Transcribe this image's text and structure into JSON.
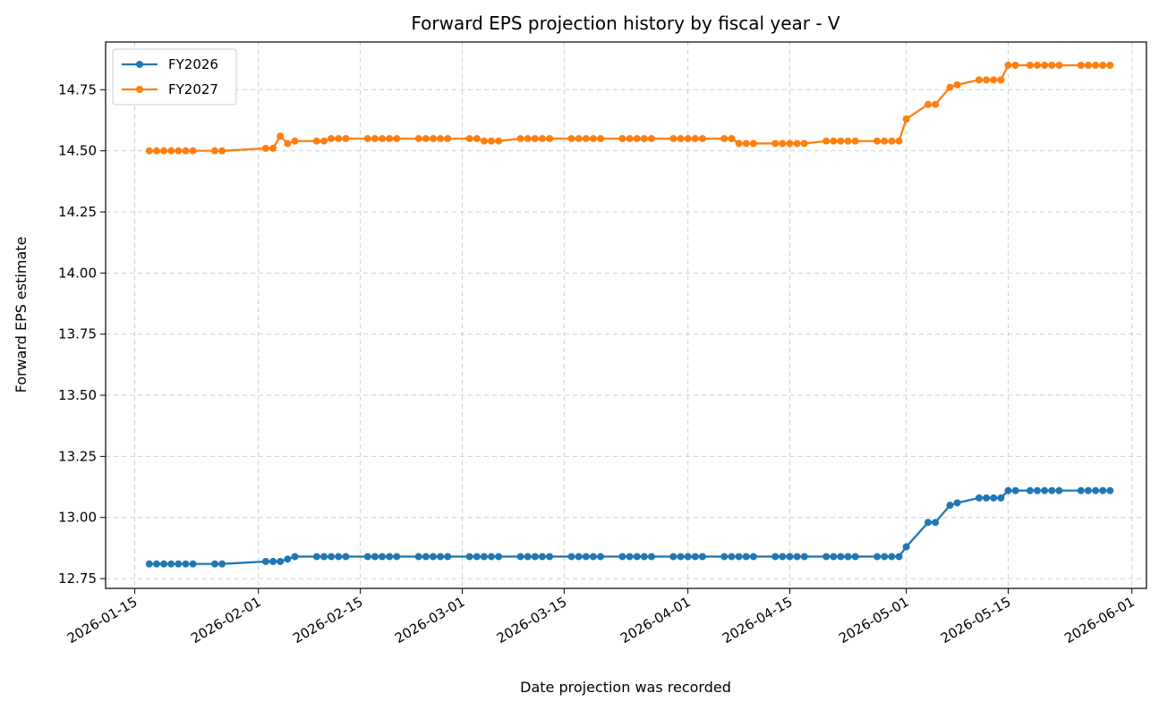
{
  "chart_data": {
    "type": "line",
    "title": "Forward EPS projection history by fiscal year - V",
    "xlabel": "Date projection was recorded",
    "ylabel": "Forward EPS estimate",
    "xlim": [
      "2026-01-11",
      "2026-06-03"
    ],
    "ylim": [
      12.71,
      14.945
    ],
    "grid": true,
    "legend_position": "top-left",
    "x_ticks": [
      "2026-01-15",
      "2026-02-01",
      "2026-02-15",
      "2026-03-01",
      "2026-03-15",
      "2026-04-01",
      "2026-04-15",
      "2026-05-01",
      "2026-05-15",
      "2026-06-01"
    ],
    "y_ticks": [
      "12.75",
      "13.00",
      "13.25",
      "13.50",
      "13.75",
      "14.00",
      "14.25",
      "14.50",
      "14.75"
    ],
    "series": [
      {
        "name": "FY2026",
        "color": "#1f77b4",
        "points": [
          [
            "2026-01-17",
            12.81
          ],
          [
            "2026-01-18",
            12.81
          ],
          [
            "2026-01-19",
            12.81
          ],
          [
            "2026-01-20",
            12.81
          ],
          [
            "2026-01-21",
            12.81
          ],
          [
            "2026-01-22",
            12.81
          ],
          [
            "2026-01-23",
            12.81
          ],
          [
            "2026-01-26",
            12.81
          ],
          [
            "2026-01-27",
            12.81
          ],
          [
            "2026-02-02",
            12.82
          ],
          [
            "2026-02-03",
            12.82
          ],
          [
            "2026-02-04",
            12.82
          ],
          [
            "2026-02-05",
            12.83
          ],
          [
            "2026-02-06",
            12.84
          ],
          [
            "2026-02-09",
            12.84
          ],
          [
            "2026-02-10",
            12.84
          ],
          [
            "2026-02-11",
            12.84
          ],
          [
            "2026-02-12",
            12.84
          ],
          [
            "2026-02-13",
            12.84
          ],
          [
            "2026-02-16",
            12.84
          ],
          [
            "2026-02-17",
            12.84
          ],
          [
            "2026-02-18",
            12.84
          ],
          [
            "2026-02-19",
            12.84
          ],
          [
            "2026-02-20",
            12.84
          ],
          [
            "2026-02-23",
            12.84
          ],
          [
            "2026-02-24",
            12.84
          ],
          [
            "2026-02-25",
            12.84
          ],
          [
            "2026-02-26",
            12.84
          ],
          [
            "2026-02-27",
            12.84
          ],
          [
            "2026-03-02",
            12.84
          ],
          [
            "2026-03-03",
            12.84
          ],
          [
            "2026-03-04",
            12.84
          ],
          [
            "2026-03-05",
            12.84
          ],
          [
            "2026-03-06",
            12.84
          ],
          [
            "2026-03-09",
            12.84
          ],
          [
            "2026-03-10",
            12.84
          ],
          [
            "2026-03-11",
            12.84
          ],
          [
            "2026-03-12",
            12.84
          ],
          [
            "2026-03-13",
            12.84
          ],
          [
            "2026-03-16",
            12.84
          ],
          [
            "2026-03-17",
            12.84
          ],
          [
            "2026-03-18",
            12.84
          ],
          [
            "2026-03-19",
            12.84
          ],
          [
            "2026-03-20",
            12.84
          ],
          [
            "2026-03-23",
            12.84
          ],
          [
            "2026-03-24",
            12.84
          ],
          [
            "2026-03-25",
            12.84
          ],
          [
            "2026-03-26",
            12.84
          ],
          [
            "2026-03-27",
            12.84
          ],
          [
            "2026-03-30",
            12.84
          ],
          [
            "2026-03-31",
            12.84
          ],
          [
            "2026-04-01",
            12.84
          ],
          [
            "2026-04-02",
            12.84
          ],
          [
            "2026-04-03",
            12.84
          ],
          [
            "2026-04-06",
            12.84
          ],
          [
            "2026-04-07",
            12.84
          ],
          [
            "2026-04-08",
            12.84
          ],
          [
            "2026-04-09",
            12.84
          ],
          [
            "2026-04-10",
            12.84
          ],
          [
            "2026-04-13",
            12.84
          ],
          [
            "2026-04-14",
            12.84
          ],
          [
            "2026-04-15",
            12.84
          ],
          [
            "2026-04-16",
            12.84
          ],
          [
            "2026-04-17",
            12.84
          ],
          [
            "2026-04-20",
            12.84
          ],
          [
            "2026-04-21",
            12.84
          ],
          [
            "2026-04-22",
            12.84
          ],
          [
            "2026-04-23",
            12.84
          ],
          [
            "2026-04-24",
            12.84
          ],
          [
            "2026-04-27",
            12.84
          ],
          [
            "2026-04-28",
            12.84
          ],
          [
            "2026-04-29",
            12.84
          ],
          [
            "2026-04-30",
            12.84
          ],
          [
            "2026-05-01",
            12.88
          ],
          [
            "2026-05-04",
            12.98
          ],
          [
            "2026-05-05",
            12.98
          ],
          [
            "2026-05-07",
            13.05
          ],
          [
            "2026-05-08",
            13.06
          ],
          [
            "2026-05-11",
            13.08
          ],
          [
            "2026-05-12",
            13.08
          ],
          [
            "2026-05-13",
            13.08
          ],
          [
            "2026-05-14",
            13.08
          ],
          [
            "2026-05-15",
            13.11
          ],
          [
            "2026-05-16",
            13.11
          ],
          [
            "2026-05-18",
            13.11
          ],
          [
            "2026-05-19",
            13.11
          ],
          [
            "2026-05-20",
            13.11
          ],
          [
            "2026-05-21",
            13.11
          ],
          [
            "2026-05-22",
            13.11
          ],
          [
            "2026-05-25",
            13.11
          ],
          [
            "2026-05-26",
            13.11
          ],
          [
            "2026-05-27",
            13.11
          ],
          [
            "2026-05-28",
            13.11
          ],
          [
            "2026-05-29",
            13.11
          ]
        ]
      },
      {
        "name": "FY2027",
        "color": "#ff7f0e",
        "points": [
          [
            "2026-01-17",
            14.5
          ],
          [
            "2026-01-18",
            14.5
          ],
          [
            "2026-01-19",
            14.5
          ],
          [
            "2026-01-20",
            14.5
          ],
          [
            "2026-01-21",
            14.5
          ],
          [
            "2026-01-22",
            14.5
          ],
          [
            "2026-01-23",
            14.5
          ],
          [
            "2026-01-26",
            14.5
          ],
          [
            "2026-01-27",
            14.5
          ],
          [
            "2026-02-02",
            14.51
          ],
          [
            "2026-02-03",
            14.51
          ],
          [
            "2026-02-04",
            14.56
          ],
          [
            "2026-02-05",
            14.53
          ],
          [
            "2026-02-06",
            14.54
          ],
          [
            "2026-02-09",
            14.54
          ],
          [
            "2026-02-10",
            14.54
          ],
          [
            "2026-02-11",
            14.55
          ],
          [
            "2026-02-12",
            14.55
          ],
          [
            "2026-02-13",
            14.55
          ],
          [
            "2026-02-16",
            14.55
          ],
          [
            "2026-02-17",
            14.55
          ],
          [
            "2026-02-18",
            14.55
          ],
          [
            "2026-02-19",
            14.55
          ],
          [
            "2026-02-20",
            14.55
          ],
          [
            "2026-02-23",
            14.55
          ],
          [
            "2026-02-24",
            14.55
          ],
          [
            "2026-02-25",
            14.55
          ],
          [
            "2026-02-26",
            14.55
          ],
          [
            "2026-02-27",
            14.55
          ],
          [
            "2026-03-02",
            14.55
          ],
          [
            "2026-03-03",
            14.55
          ],
          [
            "2026-03-04",
            14.54
          ],
          [
            "2026-03-05",
            14.54
          ],
          [
            "2026-03-06",
            14.54
          ],
          [
            "2026-03-09",
            14.55
          ],
          [
            "2026-03-10",
            14.55
          ],
          [
            "2026-03-11",
            14.55
          ],
          [
            "2026-03-12",
            14.55
          ],
          [
            "2026-03-13",
            14.55
          ],
          [
            "2026-03-16",
            14.55
          ],
          [
            "2026-03-17",
            14.55
          ],
          [
            "2026-03-18",
            14.55
          ],
          [
            "2026-03-19",
            14.55
          ],
          [
            "2026-03-20",
            14.55
          ],
          [
            "2026-03-23",
            14.55
          ],
          [
            "2026-03-24",
            14.55
          ],
          [
            "2026-03-25",
            14.55
          ],
          [
            "2026-03-26",
            14.55
          ],
          [
            "2026-03-27",
            14.55
          ],
          [
            "2026-03-30",
            14.55
          ],
          [
            "2026-03-31",
            14.55
          ],
          [
            "2026-04-01",
            14.55
          ],
          [
            "2026-04-02",
            14.55
          ],
          [
            "2026-04-03",
            14.55
          ],
          [
            "2026-04-06",
            14.55
          ],
          [
            "2026-04-07",
            14.55
          ],
          [
            "2026-04-08",
            14.53
          ],
          [
            "2026-04-09",
            14.53
          ],
          [
            "2026-04-10",
            14.53
          ],
          [
            "2026-04-13",
            14.53
          ],
          [
            "2026-04-14",
            14.53
          ],
          [
            "2026-04-15",
            14.53
          ],
          [
            "2026-04-16",
            14.53
          ],
          [
            "2026-04-17",
            14.53
          ],
          [
            "2026-04-20",
            14.54
          ],
          [
            "2026-04-21",
            14.54
          ],
          [
            "2026-04-22",
            14.54
          ],
          [
            "2026-04-23",
            14.54
          ],
          [
            "2026-04-24",
            14.54
          ],
          [
            "2026-04-27",
            14.54
          ],
          [
            "2026-04-28",
            14.54
          ],
          [
            "2026-04-29",
            14.54
          ],
          [
            "2026-04-30",
            14.54
          ],
          [
            "2026-05-01",
            14.63
          ],
          [
            "2026-05-04",
            14.69
          ],
          [
            "2026-05-05",
            14.69
          ],
          [
            "2026-05-07",
            14.76
          ],
          [
            "2026-05-08",
            14.77
          ],
          [
            "2026-05-11",
            14.79
          ],
          [
            "2026-05-12",
            14.79
          ],
          [
            "2026-05-13",
            14.79
          ],
          [
            "2026-05-14",
            14.79
          ],
          [
            "2026-05-15",
            14.85
          ],
          [
            "2026-05-16",
            14.85
          ],
          [
            "2026-05-18",
            14.85
          ],
          [
            "2026-05-19",
            14.85
          ],
          [
            "2026-05-20",
            14.85
          ],
          [
            "2026-05-21",
            14.85
          ],
          [
            "2026-05-22",
            14.85
          ],
          [
            "2026-05-25",
            14.85
          ],
          [
            "2026-05-26",
            14.85
          ],
          [
            "2026-05-27",
            14.85
          ],
          [
            "2026-05-28",
            14.85
          ],
          [
            "2026-05-29",
            14.85
          ]
        ]
      }
    ]
  }
}
